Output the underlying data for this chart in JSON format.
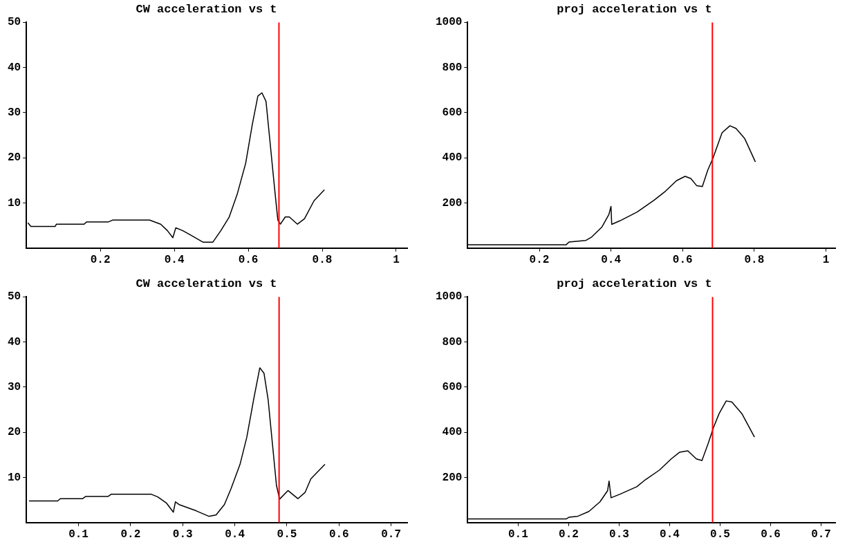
{
  "chart_data": [
    {
      "type": "line",
      "title": "CW acceleration vs t",
      "xlim": [
        0,
        1.03
      ],
      "ylim": [
        0,
        50
      ],
      "xticks": [
        0.2,
        0.4,
        0.6,
        0.8,
        1
      ],
      "yticks": [
        10,
        20,
        30,
        40,
        50
      ],
      "grid": false,
      "legend": false,
      "marker": "none",
      "line_style": "solid",
      "ref_lines": [
        {
          "axis": "x",
          "value": 0.683,
          "color": "#ff0000"
        }
      ],
      "series": [
        {
          "color": "#000000",
          "x": [
            0.004,
            0.012,
            0.078,
            0.081,
            0.156,
            0.163,
            0.222,
            0.233,
            0.333,
            0.363,
            0.381,
            0.396,
            0.404,
            0.422,
            0.444,
            0.478,
            0.504,
            0.526,
            0.548,
            0.57,
            0.593,
            0.611,
            0.626,
            0.637,
            0.648,
            0.659,
            0.67,
            0.68,
            0.687,
            0.7,
            0.711,
            0.733,
            0.752,
            0.778,
            0.806
          ],
          "values": [
            5.6,
            4.8,
            4.8,
            5.3,
            5.3,
            5.8,
            5.8,
            6.2,
            6.2,
            5.3,
            3.9,
            2.3,
            4.5,
            3.9,
            2.9,
            1.3,
            1.3,
            3.9,
            6.8,
            11.9,
            18.8,
            27.4,
            33.7,
            34.4,
            32.5,
            23.4,
            14.2,
            6.2,
            5.3,
            6.9,
            6.9,
            5.3,
            6.5,
            10.5,
            12.9
          ]
        }
      ]
    },
    {
      "type": "line",
      "title": "proj acceleration vs t",
      "xlim": [
        0,
        1.026
      ],
      "ylim": [
        0,
        1000
      ],
      "xticks": [
        0.2,
        0.4,
        0.6,
        0.8,
        1
      ],
      "yticks": [
        200,
        400,
        600,
        800,
        1000
      ],
      "grid": false,
      "legend": false,
      "marker": "none",
      "line_style": "solid",
      "ref_lines": [
        {
          "axis": "x",
          "value": 0.683,
          "color": "#ff0000"
        }
      ],
      "series": [
        {
          "color": "#000000",
          "x": [
            0,
            0.275,
            0.283,
            0.33,
            0.346,
            0.374,
            0.394,
            0.4,
            0.402,
            0.425,
            0.473,
            0.52,
            0.552,
            0.583,
            0.607,
            0.623,
            0.639,
            0.655,
            0.67,
            0.685,
            0.71,
            0.732,
            0.749,
            0.773,
            0.803
          ],
          "values": [
            15,
            15,
            27,
            34,
            49,
            92,
            148,
            185,
            105,
            121,
            160,
            212,
            252,
            299,
            318,
            308,
            277,
            273,
            345,
            400,
            511,
            542,
            530,
            486,
            382
          ]
        }
      ]
    },
    {
      "type": "line",
      "title": "CW acceleration vs t",
      "xlim": [
        0,
        0.731
      ],
      "ylim": [
        0,
        50
      ],
      "xticks": [
        0.1,
        0.2,
        0.3,
        0.4,
        0.5,
        0.6,
        0.7
      ],
      "yticks": [
        10,
        20,
        30,
        40,
        50
      ],
      "grid": false,
      "legend": false,
      "marker": "none",
      "line_style": "solid",
      "ref_lines": [
        {
          "axis": "x",
          "value": 0.485,
          "color": "#ff0000"
        }
      ],
      "series": [
        {
          "color": "#000000",
          "x": [
            0.005,
            0.06,
            0.065,
            0.108,
            0.114,
            0.157,
            0.163,
            0.239,
            0.252,
            0.269,
            0.282,
            0.286,
            0.293,
            0.326,
            0.35,
            0.364,
            0.38,
            0.393,
            0.41,
            0.423,
            0.437,
            0.448,
            0.456,
            0.464,
            0.472,
            0.48,
            0.486,
            0.502,
            0.521,
            0.535,
            0.546,
            0.573
          ],
          "values": [
            4.8,
            4.8,
            5.3,
            5.3,
            5.8,
            5.8,
            6.3,
            6.3,
            5.7,
            4.3,
            2.3,
            4.6,
            4.0,
            2.6,
            1.4,
            1.7,
            4.0,
            7.6,
            12.9,
            18.9,
            27.8,
            34.3,
            33.1,
            27.2,
            17.7,
            8.2,
            5.2,
            7.1,
            5.3,
            6.7,
            9.7,
            12.9
          ]
        }
      ]
    },
    {
      "type": "line",
      "title": "proj acceleration vs t",
      "xlim": [
        0,
        0.728
      ],
      "ylim": [
        0,
        1000
      ],
      "xticks": [
        0.1,
        0.2,
        0.3,
        0.4,
        0.5,
        0.6,
        0.7
      ],
      "yticks": [
        200,
        400,
        600,
        800,
        1000
      ],
      "grid": false,
      "legend": false,
      "marker": "none",
      "line_style": "solid",
      "ref_lines": [
        {
          "axis": "x",
          "value": 0.485,
          "color": "#ff0000"
        }
      ],
      "series": [
        {
          "color": "#000000",
          "x": [
            0,
            0.195,
            0.201,
            0.218,
            0.24,
            0.262,
            0.277,
            0.28,
            0.284,
            0.302,
            0.335,
            0.352,
            0.38,
            0.403,
            0.42,
            0.436,
            0.453,
            0.464,
            0.476,
            0.487,
            0.498,
            0.512,
            0.523,
            0.543,
            0.568
          ],
          "values": [
            16,
            16,
            24,
            28,
            49,
            92,
            141,
            184,
            110,
            126,
            159,
            190,
            233,
            282,
            312,
            318,
            282,
            275,
            349,
            422,
            483,
            539,
            535,
            483,
            379
          ]
        }
      ]
    }
  ]
}
